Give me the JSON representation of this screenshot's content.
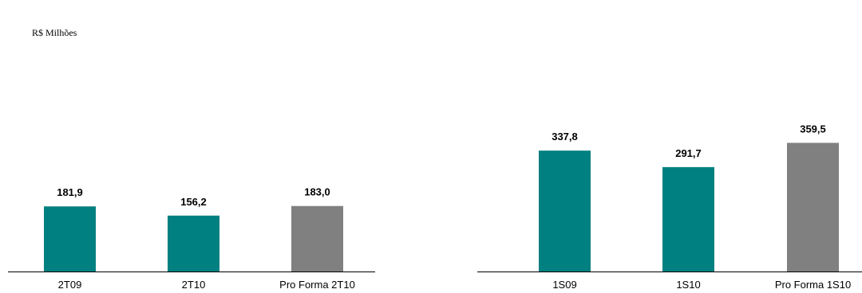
{
  "unit_label": "R$ Milhões",
  "colors": {
    "actual": "#008080",
    "pro_forma": "#808080",
    "axis": "#000000"
  },
  "chart_data": [
    {
      "type": "bar",
      "categories": [
        "2T09",
        "2T10",
        "Pro Forma 2T10"
      ],
      "values": [
        181.9,
        156.2,
        183.0
      ],
      "value_labels": [
        "181,9",
        "156,2",
        "183,0"
      ],
      "bar_kinds": [
        "actual",
        "actual",
        "pro_forma"
      ],
      "ylim": [
        0,
        380
      ],
      "grid": false,
      "legend": "none"
    },
    {
      "type": "bar",
      "categories": [
        "1S09",
        "1S10",
        "Pro Forma 1S10"
      ],
      "values": [
        337.8,
        291.7,
        359.5
      ],
      "value_labels": [
        "337,8",
        "291,7",
        "359,5"
      ],
      "bar_kinds": [
        "actual",
        "actual",
        "pro_forma"
      ],
      "ylim": [
        0,
        380
      ],
      "grid": false,
      "legend": "none"
    }
  ]
}
